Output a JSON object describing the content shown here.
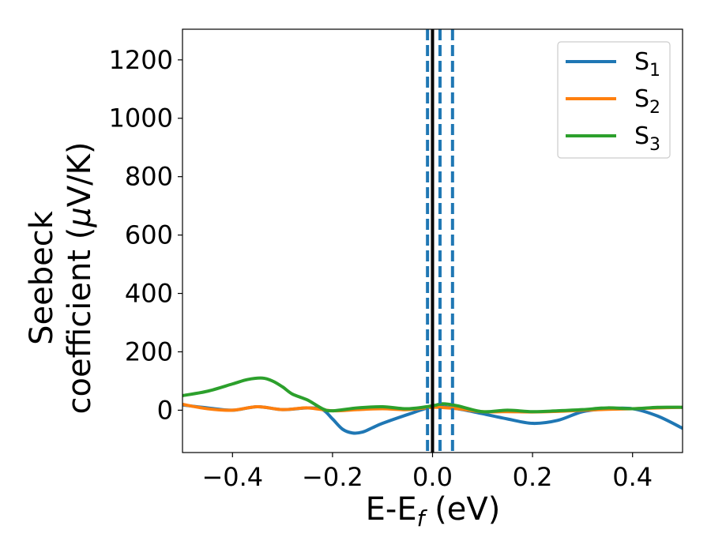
{
  "chart_data": {
    "type": "line",
    "title": "",
    "xlabel": "E-E",
    "xlabel_sub": "f",
    "xlabel_unit": " (eV)",
    "ylabel_line1": "Seebeck",
    "ylabel_line2": "coefficient  (",
    "ylabel_mu": "μ",
    "ylabel_tail": "V/K)",
    "xlim": [
      -0.5,
      0.5
    ],
    "ylim": [
      -145,
      1305
    ],
    "xticks": [
      -0.4,
      -0.2,
      0.0,
      0.2,
      0.4
    ],
    "xtick_labels": [
      "−0.4",
      "−0.2",
      "0.0",
      "0.2",
      "0.4"
    ],
    "yticks": [
      0,
      200,
      400,
      600,
      800,
      1000,
      1200
    ],
    "ytick_labels": [
      "0",
      "200",
      "400",
      "600",
      "800",
      "1000",
      "1200"
    ],
    "grid": false,
    "legend_position": "top-right",
    "vlines": [
      {
        "x": 0.0,
        "style": "solid",
        "color": "#000000"
      },
      {
        "x": -0.01,
        "style": "dashed",
        "color": "#1f77b4"
      },
      {
        "x": 0.015,
        "style": "dashed",
        "color": "#1f77b4"
      },
      {
        "x": 0.04,
        "style": "dashed",
        "color": "#1f77b4"
      }
    ],
    "series": [
      {
        "name": "S",
        "subscript": "1",
        "color": "#1f77b4",
        "x": [
          -0.5,
          -0.45,
          -0.4,
          -0.35,
          -0.3,
          -0.25,
          -0.22,
          -0.2,
          -0.18,
          -0.16,
          -0.14,
          -0.12,
          -0.1,
          -0.05,
          0.0,
          0.03,
          0.06,
          0.1,
          0.15,
          0.2,
          0.25,
          0.3,
          0.35,
          0.4,
          0.45,
          0.5
        ],
        "y": [
          18,
          8,
          0,
          12,
          2,
          8,
          2,
          -30,
          -65,
          -78,
          -75,
          -60,
          -45,
          -15,
          12,
          10,
          2,
          -12,
          -30,
          -45,
          -35,
          -5,
          5,
          5,
          -20,
          -62
        ]
      },
      {
        "name": "S",
        "subscript": "2",
        "color": "#ff7f0e",
        "x": [
          -0.5,
          -0.45,
          -0.4,
          -0.35,
          -0.3,
          -0.25,
          -0.2,
          -0.15,
          -0.1,
          -0.05,
          0.0,
          0.05,
          0.1,
          0.15,
          0.2,
          0.25,
          0.3,
          0.35,
          0.4,
          0.45,
          0.5
        ],
        "y": [
          20,
          5,
          0,
          12,
          2,
          8,
          -2,
          2,
          5,
          2,
          10,
          5,
          -5,
          -5,
          -6,
          -4,
          0,
          3,
          5,
          8,
          10
        ]
      },
      {
        "name": "S",
        "subscript": "3",
        "color": "#2ca02c",
        "x": [
          -0.5,
          -0.45,
          -0.4,
          -0.37,
          -0.34,
          -0.32,
          -0.3,
          -0.28,
          -0.25,
          -0.22,
          -0.2,
          -0.15,
          -0.1,
          -0.05,
          0.0,
          0.02,
          0.05,
          0.1,
          0.15,
          0.2,
          0.25,
          0.3,
          0.35,
          0.4,
          0.45,
          0.5
        ],
        "y": [
          50,
          65,
          90,
          105,
          110,
          100,
          80,
          55,
          35,
          5,
          -2,
          8,
          12,
          5,
          15,
          22,
          15,
          -5,
          0,
          -5,
          -2,
          2,
          8,
          5,
          10,
          10
        ]
      }
    ]
  }
}
